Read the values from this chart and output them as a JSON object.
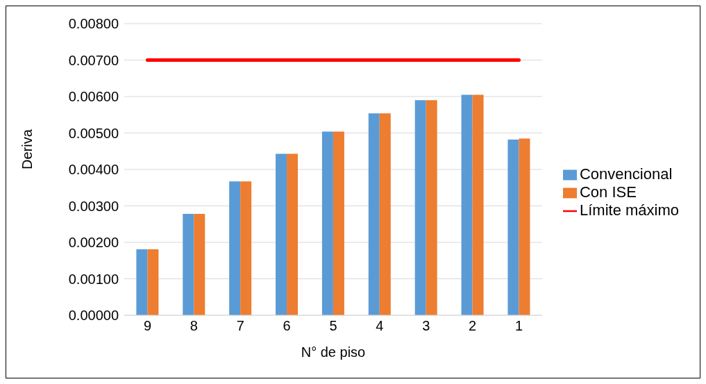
{
  "chart_data": {
    "type": "bar",
    "xlabel": "N° de piso",
    "ylabel": "Deriva",
    "categories": [
      "9",
      "8",
      "7",
      "6",
      "5",
      "4",
      "3",
      "2",
      "1"
    ],
    "series": [
      {
        "name": "Convencional",
        "color": "#5b9bd5",
        "values": [
          0.00181,
          0.00278,
          0.00367,
          0.00443,
          0.00504,
          0.00554,
          0.0059,
          0.00605,
          0.00482
        ]
      },
      {
        "name": "Con ISE",
        "color": "#ed7d31",
        "values": [
          0.00181,
          0.00278,
          0.00367,
          0.00443,
          0.00504,
          0.00554,
          0.0059,
          0.00605,
          0.00485
        ]
      },
      {
        "name": "Límite máximo",
        "type": "line",
        "color": "#ff0000",
        "values": [
          0.007,
          0.007,
          0.007,
          0.007,
          0.007,
          0.007,
          0.007,
          0.007,
          0.007
        ]
      }
    ],
    "ylim": [
      0,
      0.008
    ],
    "yticks": [
      {
        "value": 0,
        "label": "0.00000"
      },
      {
        "value": 0.001,
        "label": "0.00100"
      },
      {
        "value": 0.002,
        "label": "0.00200"
      },
      {
        "value": 0.003,
        "label": "0.00300"
      },
      {
        "value": 0.004,
        "label": "0.00400"
      },
      {
        "value": 0.005,
        "label": "0.00500"
      },
      {
        "value": 0.006,
        "label": "0.00600"
      },
      {
        "value": 0.007,
        "label": "0.00700"
      },
      {
        "value": 0.008,
        "label": "0.00800"
      }
    ],
    "grid": "y",
    "legend": "right",
    "marker": "none"
  }
}
